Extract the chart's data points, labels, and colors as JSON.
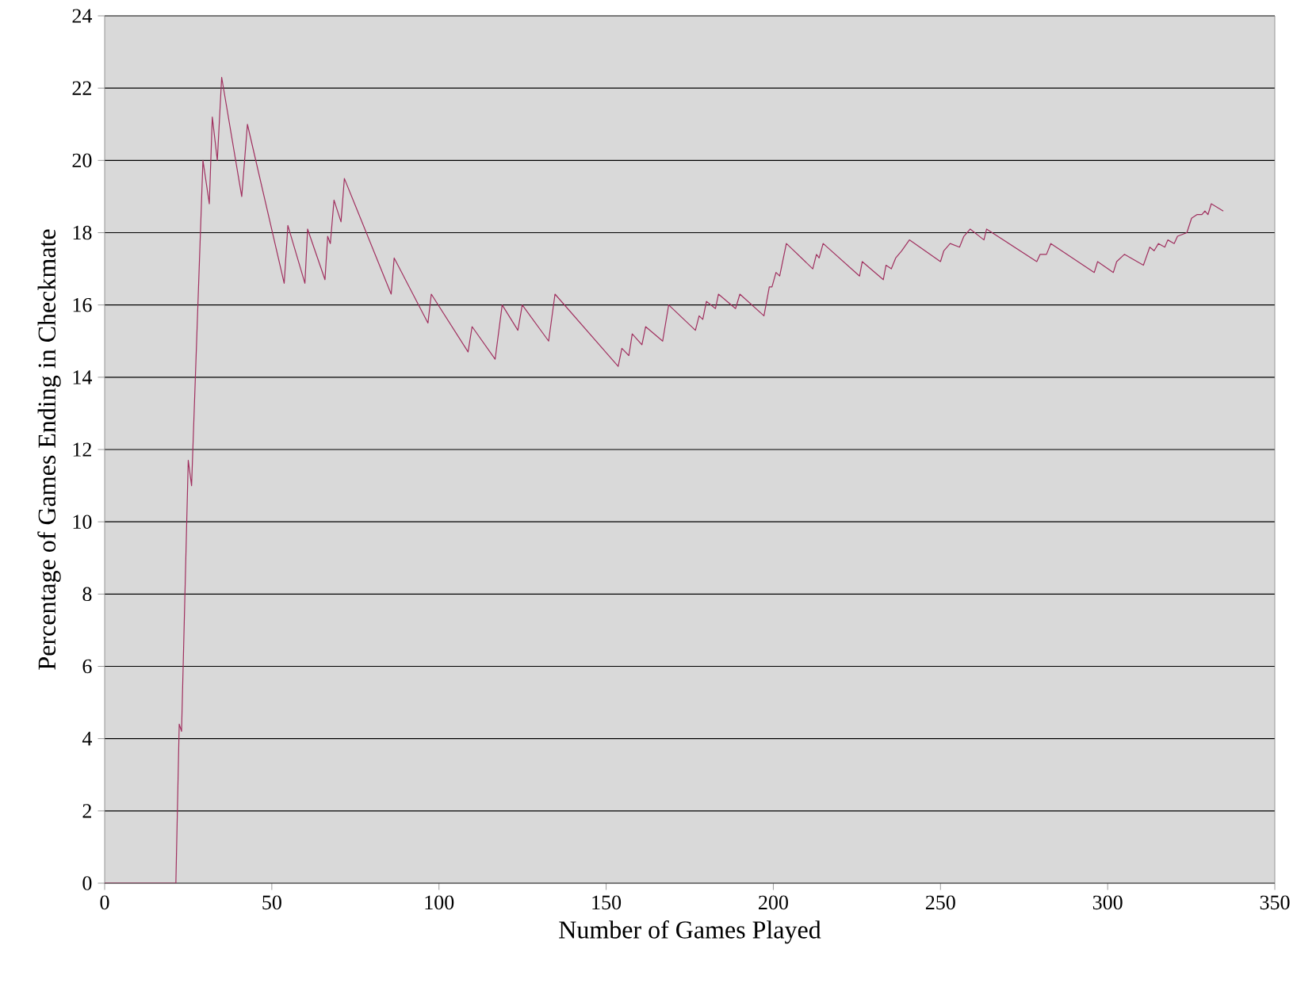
{
  "chart_data": {
    "type": "line",
    "xlabel": "Number of Games Played",
    "ylabel": "Percentage of Games Ending in Checkmate",
    "xlim": [
      0,
      350
    ],
    "ylim": [
      0,
      24
    ],
    "xticks": [
      0,
      50,
      100,
      150,
      200,
      250,
      300,
      350
    ],
    "yticks": [
      0,
      2,
      4,
      6,
      8,
      10,
      12,
      14,
      16,
      18,
      20,
      22,
      24
    ],
    "grid": "y",
    "marker": "none",
    "line_style": "solid",
    "series": [
      {
        "color": "#a0305f",
        "x": [
          0,
          21.3,
          22.3,
          23,
          25,
          26,
          29.4,
          31.3,
          32.2,
          33.7,
          35,
          41,
          42.7,
          53.7,
          54.8,
          59.9,
          60.7,
          65.9,
          66.7,
          67.5,
          68.6,
          70.7,
          71.7,
          85.7,
          86.6,
          96.7,
          97.7,
          108.7,
          109.9,
          116.8,
          118.9,
          123.6,
          124.9,
          132.8,
          134.7,
          153.6,
          154.7,
          156.8,
          157.8,
          160.7,
          161.8,
          166.9,
          168.7,
          176.7,
          177.8,
          178.9,
          180,
          182.7,
          183.6,
          188.7,
          190,
          197.2,
          198.8,
          199.6,
          200.8,
          201.9,
          203.9,
          211.8,
          212.9,
          213.7,
          214.9,
          225.8,
          226.6,
          232.9,
          233.7,
          235.3,
          236.6,
          238.4,
          240.7,
          250,
          251,
          252.9,
          255.7,
          257,
          258.9,
          263,
          263.8,
          278.8,
          279.8,
          281.7,
          283,
          296,
          297,
          301.7,
          302.7,
          305,
          310.7,
          312.6,
          313.9,
          315.2,
          317.1,
          318,
          319.9,
          320.9,
          323.7,
          325.1,
          326.7,
          328.2,
          329.1,
          330,
          331,
          334.6
        ],
        "values": [
          0,
          0,
          4.4,
          4.2,
          11.7,
          11,
          20,
          18.8,
          21.2,
          20,
          22.3,
          19,
          21,
          16.6,
          18.2,
          16.6,
          18.1,
          16.7,
          17.9,
          17.7,
          18.9,
          18.3,
          19.5,
          16.3,
          17.3,
          15.5,
          16.3,
          14.7,
          15.4,
          14.5,
          16,
          15.3,
          16,
          15,
          16.3,
          14.3,
          14.8,
          14.6,
          15.2,
          14.9,
          15.4,
          15,
          16,
          15.3,
          15.7,
          15.6,
          16.1,
          15.9,
          16.3,
          15.9,
          16.3,
          15.7,
          16.5,
          16.5,
          16.9,
          16.8,
          17.7,
          17,
          17.4,
          17.3,
          17.7,
          16.8,
          17.2,
          16.7,
          17.1,
          17,
          17.3,
          17.5,
          17.8,
          17.2,
          17.5,
          17.7,
          17.6,
          17.9,
          18.1,
          17.8,
          18.1,
          17.2,
          17.4,
          17.4,
          17.7,
          16.9,
          17.2,
          16.9,
          17.2,
          17.4,
          17.1,
          17.6,
          17.5,
          17.7,
          17.6,
          17.8,
          17.7,
          17.9,
          18,
          18.4,
          18.5,
          18.5,
          18.6,
          18.5,
          18.8,
          18.6
        ]
      }
    ]
  }
}
